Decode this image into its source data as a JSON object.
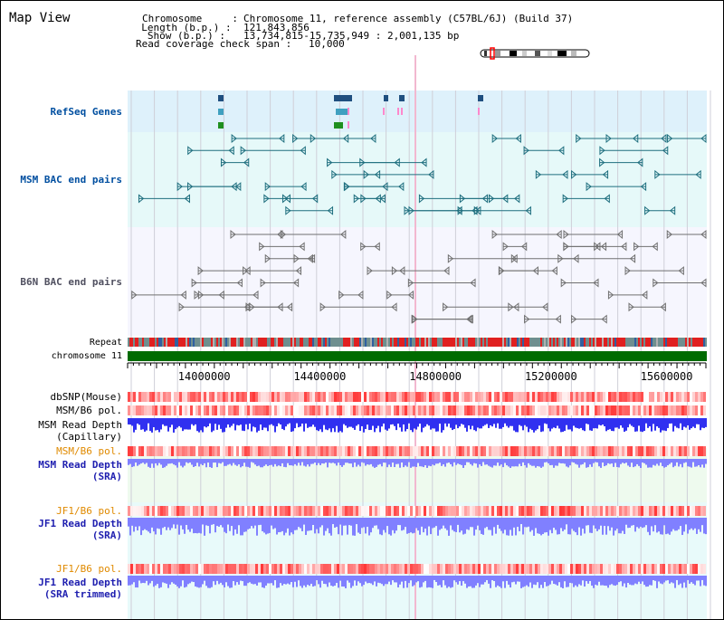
{
  "title": "Map View",
  "info": {
    "chromosome_key": "Chromosome     :",
    "chromosome": "Chromosome 11, reference assembly (C57BL/6J) (Build 37)",
    "length_key": "  Length (b.p.) :",
    "length": "121,843,856",
    "show_key": "   Show (b.p.) :",
    "show": "13,734,815-15,735,949 : 2,001,135 bp",
    "span_key": "Read coverage check span :",
    "span": "10,000"
  },
  "tracks": {
    "refseq": "RefSeq Genes",
    "msm_bac": "MSM BAC end pairs",
    "b6n_bac": "B6N BAC end pairs",
    "repeat": "Repeat",
    "chromosome": "chromosome 11",
    "dbsnp": "dbSNP(Mouse)",
    "msm_b6_pol_1": "MSM/B6 pol.",
    "msm_depth_cap": "MSM Read Depth",
    "msm_depth_cap_sub": "(Capillary)",
    "msm_b6_pol_2": "MSM/B6 pol.",
    "msm_depth_sra": "MSM Read Depth",
    "msm_depth_sra_sub": "(SRA)",
    "jf1_b6_pol_1": "JF1/B6 pol.",
    "jf1_depth_sra": "JF1 Read Depth",
    "jf1_depth_sra_sub": "(SRA)",
    "jf1_b6_pol_2": "JF1/B6 pol.",
    "jf1_depth_trim": "JF1 Read Depth",
    "jf1_depth_trim_sub": "(SRA trimmed)"
  },
  "axis": {
    "start": 13734815,
    "end": 15735949,
    "major_ticks": [
      "14000000",
      "14400000",
      "14800000",
      "15200000",
      "15600000"
    ],
    "major_values": [
      14000000,
      14400000,
      14800000,
      15200000,
      15600000
    ]
  },
  "colors": {
    "refseq_bg": "#def1fb",
    "msm_bg": "#e6f9f9",
    "b6n_bg": "#f6f6fe",
    "msm_label": "#004fa0",
    "orange_label": "#e08a00",
    "depth_label": "#2020b0",
    "gene": "#1f4f7f",
    "msm_feature": "#1f6f7f",
    "b6n_feature": "#707070",
    "chromosome": "#006b00",
    "depth_blue": "#3030f0",
    "depth_light": "#8080ff"
  }
}
